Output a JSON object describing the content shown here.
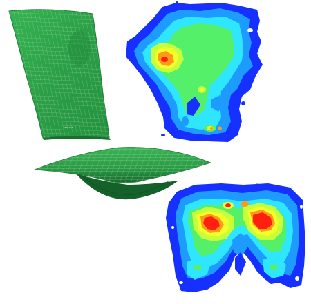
{
  "mat": {
    "label_text": "TEKSCAN"
  },
  "colors": {
    "mat_green": "#2ea44a",
    "mat_dark": "#1d7a33",
    "grid_line": "#b9e3b6",
    "map_blue_dark": "#1630ff",
    "map_blue": "#1e9bff",
    "map_cyan": "#2fe6ff",
    "map_green": "#55f06a",
    "map_yellow": "#f2ff2a",
    "map_orange": "#ff9a18",
    "map_red": "#ff2010"
  }
}
